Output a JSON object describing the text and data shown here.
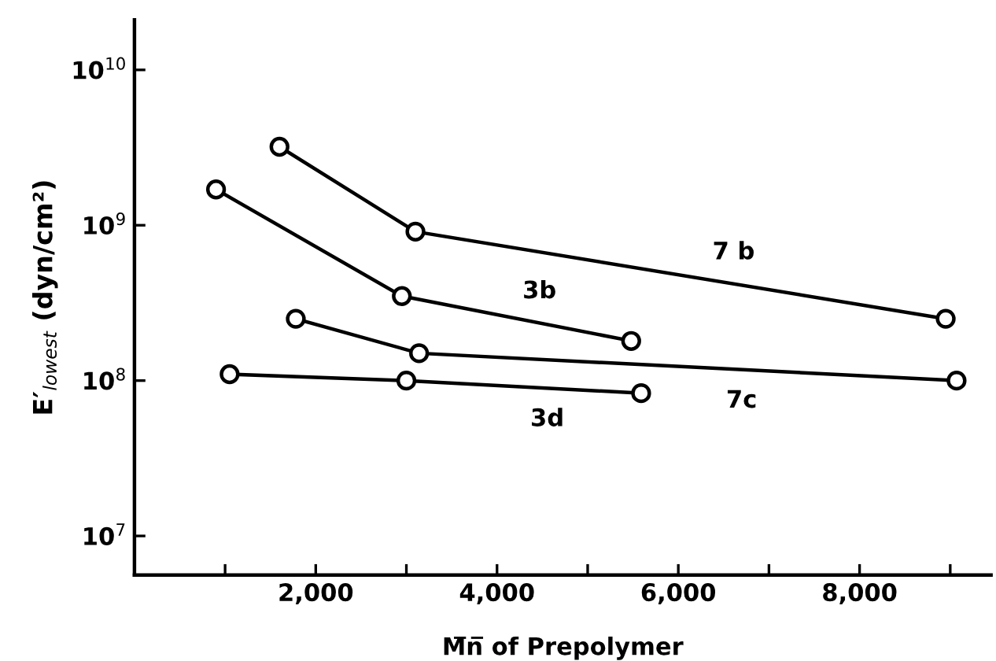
{
  "chart_data": {
    "type": "line",
    "xlabel": "M̅n̅ of Prepolymer",
    "ylabel": "E′$_{lowest}$ (dyn/cm²)",
    "log": "y",
    "marker": "circle",
    "line_style": "solid",
    "grid": false,
    "legend": false,
    "xlim": [
      0,
      9450
    ],
    "xticks": [
      {
        "value": 1000,
        "label": null
      },
      {
        "value": 2000,
        "label": "2,000"
      },
      {
        "value": 3000,
        "label": null
      },
      {
        "value": 4000,
        "label": "4,000"
      },
      {
        "value": 5000,
        "label": null
      },
      {
        "value": 6000,
        "label": "6,000"
      },
      {
        "value": 7000,
        "label": null
      },
      {
        "value": 8000,
        "label": "8,000"
      },
      {
        "value": 9000,
        "label": null
      }
    ],
    "ylim": [
      5600000.0,
      21000000000.0
    ],
    "yticks": [
      {
        "value": 10000000.0,
        "label": "10$^{7}$"
      },
      {
        "value": 100000000.0,
        "label": "10$^{8}$"
      },
      {
        "value": 1000000000.0,
        "label": "10$^{9}$"
      },
      {
        "value": 10000000000.0,
        "label": "10$^{10}$"
      }
    ],
    "series": [
      {
        "name": "7 b",
        "color": "#000000",
        "x": [
          1600,
          3100,
          8950
        ],
        "values": [
          3200000000.0,
          910000000.0,
          250000000.0
        ]
      },
      {
        "name": "3b",
        "color": "#000000",
        "x": [
          900,
          2950,
          5480
        ],
        "values": [
          1700000000.0,
          350000000.0,
          180000000.0
        ]
      },
      {
        "name": "7c",
        "color": "#000000",
        "x": [
          1780,
          3140,
          9070
        ],
        "values": [
          250000000.0,
          150000000.0,
          100000000.0
        ]
      },
      {
        "name": "3d",
        "color": "#000000",
        "x": [
          1050,
          3000,
          5590
        ],
        "values": [
          110000000.0,
          100000000.0,
          83000000.0
        ]
      }
    ]
  }
}
